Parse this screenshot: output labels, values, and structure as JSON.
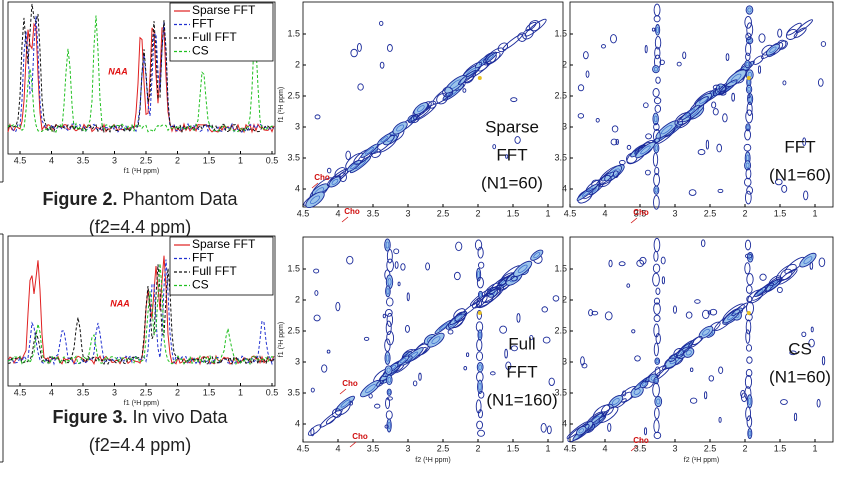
{
  "figure2": {
    "legend": [
      "Sparse FFT",
      "FFT",
      "Full FFT",
      "CS"
    ],
    "annotation": "NAA",
    "x_ticks": [
      4.5,
      4,
      3.5,
      3,
      2.5,
      2,
      1.5,
      1,
      0.5
    ],
    "x_label": "f1 (¹H ppm)",
    "caption_label": "Figure 2.",
    "caption_text": "Phantom Data",
    "caption_line2": "(f2=4.4 ppm)"
  },
  "figure3": {
    "legend": [
      "Sparse FFT",
      "FFT",
      "Full FFT",
      "CS"
    ],
    "annotation": "NAA",
    "x_ticks": [
      4.5,
      4,
      3.5,
      3,
      2.5,
      2,
      1.5,
      1,
      0.5
    ],
    "x_label": "f1 (¹H ppm)",
    "caption_label": "Figure 3.",
    "caption_text": "In vivo Data",
    "caption_line2": "(f2=4.4 ppm)"
  },
  "panels": [
    {
      "label_lines": [
        "Sparse",
        "FFT",
        "(N1=60)"
      ],
      "annotations": [
        "Cho",
        "Cho"
      ],
      "x_ticks": [
        4.5,
        4,
        3.5,
        3,
        2.5,
        2,
        1.5,
        1
      ],
      "y_ticks": [
        1.5,
        2,
        2.5,
        3,
        3.5,
        4
      ],
      "y_label": "f1 (¹H ppm)"
    },
    {
      "label_lines": [
        "FFT",
        "(N1=60)"
      ],
      "annotations": [
        "Cho"
      ],
      "x_ticks": [
        4.5,
        4,
        3.5,
        3,
        2.5,
        2,
        1.5,
        1
      ],
      "y_ticks": [
        1.5,
        2,
        2.5,
        3,
        3.5,
        4
      ]
    },
    {
      "label_lines": [
        "Full",
        "FFT",
        "(N1=160)"
      ],
      "annotations": [
        "Cho",
        "Cho"
      ],
      "x_ticks": [
        4.5,
        4,
        3.5,
        3,
        2.5,
        2,
        1.5,
        1
      ],
      "y_ticks": [
        1.5,
        2,
        2.5,
        3,
        3.5,
        4
      ],
      "y_label": "f1 (¹H ppm)",
      "x_label": "f2 (¹H ppm)"
    },
    {
      "label_lines": [
        "CS",
        "(N1=60)"
      ],
      "annotations": [
        "Cho"
      ],
      "x_ticks": [
        4.5,
        4,
        3.5,
        3,
        2.5,
        2,
        1.5,
        1
      ],
      "y_ticks": [
        1.5,
        2,
        2.5,
        3,
        3.5,
        4
      ],
      "x_label": "f2 (¹H ppm)"
    }
  ]
}
